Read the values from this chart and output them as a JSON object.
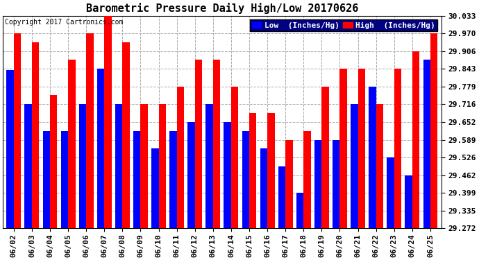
{
  "title": "Barometric Pressure Daily High/Low 20170626",
  "copyright": "Copyright 2017 Cartronics.com",
  "legend_low": "Low  (Inches/Hg)",
  "legend_high": "High  (Inches/Hg)",
  "dates": [
    "06/02",
    "06/03",
    "06/04",
    "06/05",
    "06/06",
    "06/07",
    "06/08",
    "06/09",
    "06/10",
    "06/11",
    "06/12",
    "06/13",
    "06/14",
    "06/15",
    "06/16",
    "06/17",
    "06/18",
    "06/19",
    "06/20",
    "06/21",
    "06/22",
    "06/23",
    "06/24",
    "06/25"
  ],
  "low": [
    29.84,
    29.716,
    29.62,
    29.62,
    29.716,
    29.843,
    29.716,
    29.62,
    29.558,
    29.62,
    29.652,
    29.716,
    29.652,
    29.62,
    29.558,
    29.495,
    29.399,
    29.589,
    29.589,
    29.716,
    29.779,
    29.526,
    29.462,
    29.875
  ],
  "high": [
    29.97,
    29.938,
    29.75,
    29.875,
    29.97,
    30.033,
    29.938,
    29.716,
    29.716,
    29.78,
    29.875,
    29.875,
    29.78,
    29.684,
    29.684,
    29.589,
    29.62,
    29.78,
    29.843,
    29.843,
    29.716,
    29.843,
    29.906,
    29.97
  ],
  "ylim_min": 29.272,
  "ylim_max": 30.033,
  "yticks": [
    29.272,
    29.335,
    29.399,
    29.462,
    29.526,
    29.589,
    29.652,
    29.716,
    29.779,
    29.843,
    29.906,
    29.97,
    30.033
  ],
  "bar_color_low": "#0000ff",
  "bar_color_high": "#ff0000",
  "background_color": "#ffffff",
  "plot_bg_color": "#ffffff",
  "grid_color": "#aaaaaa",
  "title_fontsize": 11,
  "copyright_fontsize": 7,
  "tick_fontsize": 8,
  "legend_fontsize": 8
}
